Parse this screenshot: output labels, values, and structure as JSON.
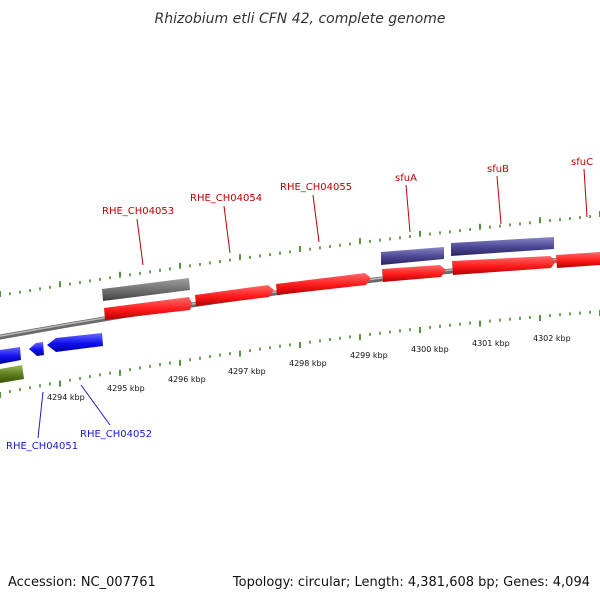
{
  "title": "Rhizobium etli CFN 42, complete genome",
  "footer": {
    "accession": "Accession: NC_007761",
    "summary": "Topology: circular; Length: 4,381,608 bp; Genes: 4,094"
  },
  "colors": {
    "forward_label": "#c00000",
    "reverse_label": "#1a1acc",
    "tick": "#2d7a10",
    "backbone": "#8a8a8a",
    "red_feature": "#ff1a1a",
    "purple_feature": "#4a4592",
    "gray_feature": "#6e6e6e",
    "blue_feature": "#1010ee",
    "green_feature": "#5a7a1a"
  },
  "axis_labels": [
    "4294 kbp",
    "4295 kbp",
    "4296 kbp",
    "4297 kbp",
    "4298 kbp",
    "4299 kbp",
    "4300 kbp",
    "4301 kbp",
    "4302 kbp"
  ],
  "gene_labels": [
    {
      "name": "RHE_CH04053",
      "strand": "forward"
    },
    {
      "name": "RHE_CH04054",
      "strand": "forward"
    },
    {
      "name": "RHE_CH04055",
      "strand": "forward"
    },
    {
      "name": "sfuA",
      "strand": "forward"
    },
    {
      "name": "sfuB",
      "strand": "forward"
    },
    {
      "name": "sfuC",
      "strand": "forward"
    },
    {
      "name": "RHE_CH04051",
      "strand": "reverse"
    },
    {
      "name": "RHE_CH04052",
      "strand": "reverse"
    }
  ]
}
